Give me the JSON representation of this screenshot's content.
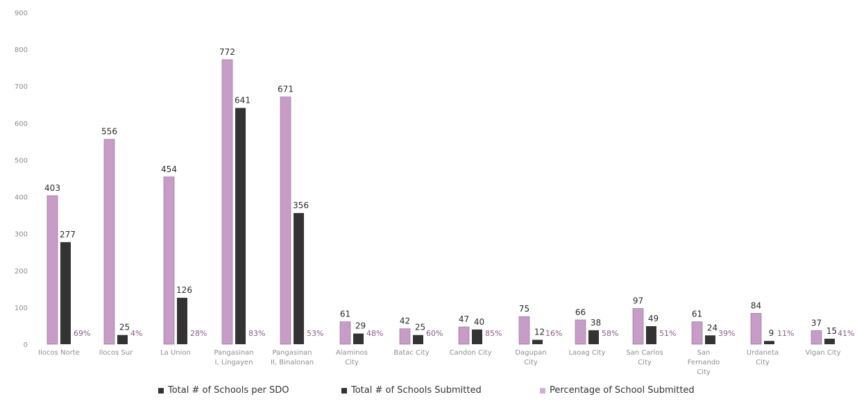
{
  "chart_data": {
    "type": "bar",
    "y_ticks": [
      "900",
      "800",
      "700",
      "600",
      "500",
      "400",
      "300",
      "200",
      "100",
      "0"
    ],
    "ylim": [
      0,
      900
    ],
    "categories": [
      [
        "Ilocos Norte"
      ],
      [
        "Ilocos Sur"
      ],
      [
        "La Union"
      ],
      [
        "Pangasinan",
        "I, Lingayen"
      ],
      [
        "Pangasinan",
        "II, Binalonan"
      ],
      [
        "Alaminos",
        "City"
      ],
      [
        "Batac City"
      ],
      [
        "Candon City"
      ],
      [
        "Dagupan",
        "City"
      ],
      [
        "Laoag City"
      ],
      [
        "San Carlos",
        "City"
      ],
      [
        "San",
        "Fernando",
        "City"
      ],
      [
        "Urdaneta",
        "City"
      ],
      [
        "Vigan City"
      ]
    ],
    "series": [
      {
        "name": "Total # of Schools per SDO",
        "values": [
          403,
          556,
          454,
          772,
          671,
          61,
          42,
          47,
          75,
          66,
          97,
          61,
          84,
          37
        ]
      },
      {
        "name": "Total # of Schools Submitted",
        "values": [
          277,
          25,
          126,
          641,
          356,
          29,
          25,
          40,
          12,
          38,
          49,
          24,
          9,
          15
        ]
      },
      {
        "name": "Percentage of School Submitted",
        "labels": [
          "69%",
          "4%",
          "28%",
          "83%",
          "53%",
          "48%",
          "60%",
          "85%",
          "16%",
          "58%",
          "51%",
          "39%",
          "11%",
          "41%"
        ]
      }
    ],
    "legend_position": "bottom",
    "grid": false,
    "colors": {
      "total": "#c79cc7",
      "submitted": "#333333",
      "percentage": "#d9a9d9"
    }
  }
}
